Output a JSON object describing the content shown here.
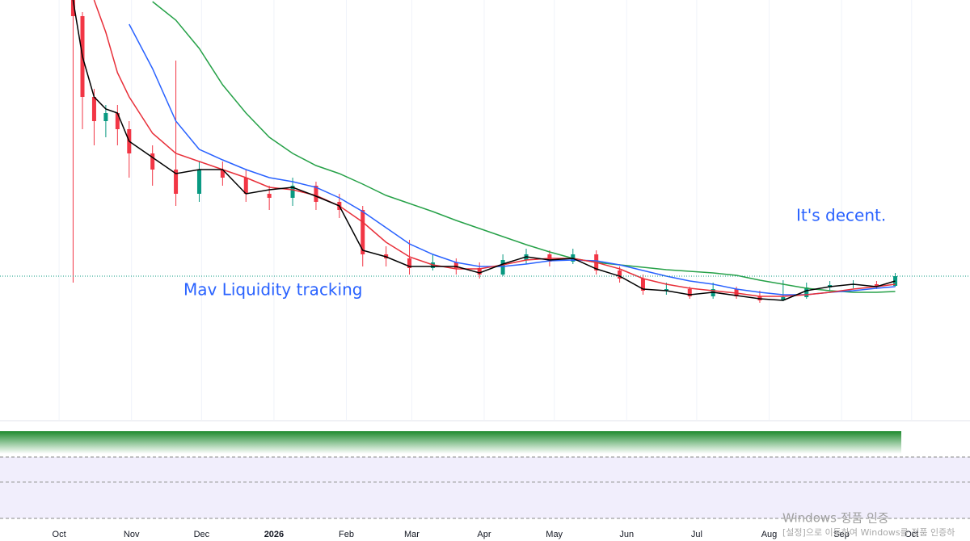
{
  "chart_data": {
    "type": "candlestick",
    "xlim": [
      -25.3,
      390
    ],
    "xticks": [
      {
        "value": 0,
        "label": "Oct"
      },
      {
        "value": 31,
        "label": "Nov"
      },
      {
        "value": 61,
        "label": "Dec"
      },
      {
        "value": 92,
        "label": "2026"
      },
      {
        "value": 123,
        "label": "Feb"
      },
      {
        "value": 151,
        "label": "Mar"
      },
      {
        "value": 182,
        "label": "Apr"
      },
      {
        "value": 212,
        "label": "May"
      },
      {
        "value": 243,
        "label": "Jun"
      },
      {
        "value": 273,
        "label": "Jul"
      },
      {
        "value": 304,
        "label": "Aug"
      },
      {
        "value": 335,
        "label": "Sep"
      },
      {
        "value": 365,
        "label": "Oct"
      }
    ],
    "ylim": [
      0,
      52
    ],
    "grid": true,
    "up_color": "#089981",
    "down_color": "#f23645",
    "x": [
      6,
      10,
      15,
      20,
      25,
      30,
      40,
      50,
      60,
      70,
      80,
      90,
      100,
      110,
      120,
      130,
      140,
      150,
      160,
      170,
      180,
      190,
      200,
      210,
      220,
      230,
      240,
      250,
      260,
      270,
      280,
      290,
      300,
      310,
      320,
      330,
      340,
      350,
      358
    ],
    "open": [
      52,
      50,
      40,
      37,
      38,
      36,
      33,
      31,
      28,
      31,
      30,
      28,
      27.5,
      29,
      27,
      26,
      20.5,
      20,
      18.8,
      19.5,
      18.8,
      18,
      19.8,
      20.5,
      19.6,
      20.5,
      18.5,
      17.5,
      16,
      16.2,
      15.3,
      16.2,
      15.3,
      14.8,
      15.2,
      16.4,
      16.7,
      16.8,
      16.6
    ],
    "high": [
      52,
      50.5,
      41,
      39,
      39,
      37,
      34,
      44.5,
      32,
      32,
      31,
      29,
      30,
      29.5,
      28,
      26.5,
      21.5,
      22.3,
      20.5,
      20,
      19.5,
      20.5,
      21.2,
      21,
      21.2,
      21,
      19,
      18,
      17,
      16.5,
      17,
      16.5,
      16,
      17.3,
      17,
      17.2,
      17.3,
      17.2,
      18.2
    ],
    "low": [
      17,
      36,
      34,
      35,
      34,
      30,
      29,
      26.5,
      27,
      29,
      27,
      26,
      26.5,
      26,
      25,
      19,
      19,
      18,
      18.5,
      18,
      17.5,
      17.8,
      19.3,
      19,
      19.3,
      18,
      17,
      15.5,
      15.5,
      15,
      15,
      15,
      14.5,
      14.7,
      15,
      16,
      16.3,
      16.2,
      16.5
    ],
    "close": [
      50,
      40,
      37,
      38,
      36,
      33,
      31,
      28,
      31,
      30,
      28,
      27.5,
      29,
      27,
      26,
      20.5,
      20,
      18.8,
      19.5,
      18.8,
      18,
      19.8,
      20.5,
      19.6,
      20.5,
      18.5,
      17.5,
      16,
      16.2,
      15.3,
      16.2,
      15.3,
      14.8,
      15.2,
      16.4,
      16.7,
      16.8,
      16.6,
      17.8
    ],
    "series": [
      {
        "color": "#26a148",
        "values": [
          null,
          null,
          null,
          null,
          null,
          null,
          51.8,
          49.5,
          46,
          41.5,
          38,
          35,
          33,
          31.5,
          30.5,
          29.2,
          27.8,
          26.8,
          25.8,
          24.7,
          23.7,
          22.7,
          21.7,
          20.8,
          20,
          19.5,
          19.2,
          18.9,
          18.6,
          18.4,
          18.2,
          17.9,
          17.3,
          16.8,
          16.3,
          16,
          15.8,
          15.8,
          15.9
        ]
      },
      {
        "color": "#2962ff",
        "values": [
          null,
          null,
          null,
          null,
          null,
          49,
          43.5,
          37,
          33.5,
          32.2,
          31,
          30,
          29.5,
          28.8,
          27.5,
          25.8,
          23.8,
          21.8,
          20.5,
          19.5,
          19,
          19,
          19.3,
          19.7,
          19.8,
          19.7,
          19.2,
          18.5,
          17.8,
          17.2,
          16.8,
          16.2,
          15.8,
          15.5,
          15.5,
          15.8,
          16,
          16.3,
          16.5
        ]
      },
      {
        "color": "#e8303a",
        "values": [
          null,
          null,
          52,
          48,
          43,
          40,
          35.5,
          33,
          32,
          31,
          30,
          28.8,
          28.5,
          27.8,
          26.5,
          24.5,
          22,
          20.2,
          19.2,
          18.7,
          18.7,
          19.2,
          19.8,
          20,
          20,
          19.5,
          18.7,
          17.5,
          16.8,
          16.3,
          16,
          15.7,
          15.3,
          15.3,
          15.5,
          15.8,
          16.2,
          16.5,
          16.8
        ]
      },
      {
        "color": "#000000",
        "values": [
          52,
          45,
          40,
          38.5,
          38,
          34.5,
          32.5,
          30.5,
          31,
          31,
          28,
          28.5,
          28.8,
          27.7,
          26.5,
          21,
          20.2,
          19,
          19,
          19,
          18.2,
          19.3,
          20.2,
          19.8,
          20,
          18.7,
          17.8,
          16.2,
          16,
          15.5,
          15.8,
          15.4,
          15,
          14.8,
          16,
          16.5,
          16.8,
          16.5,
          17.2
        ]
      }
    ],
    "annotations": [
      "Mav Liquidity tracking",
      "It's decent."
    ]
  },
  "watermark": {
    "title": "Windows 정품 인증",
    "subtitle": "[설정]으로 이동하여 Windows를 정품 인증하"
  }
}
